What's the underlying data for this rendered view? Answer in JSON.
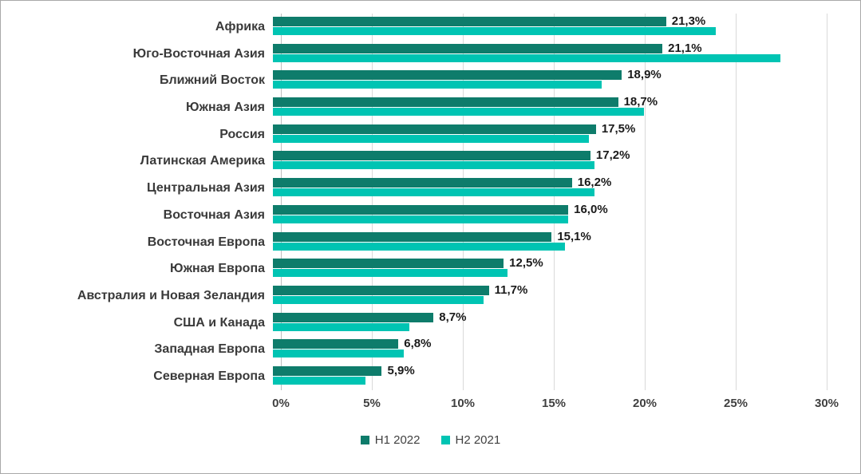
{
  "chart_data": {
    "type": "bar",
    "orientation": "horizontal",
    "title": "",
    "xlabel": "",
    "ylabel": "",
    "xlim": [
      0,
      30
    ],
    "x_ticks": [
      "0%",
      "5%",
      "10%",
      "15%",
      "20%",
      "25%",
      "30%"
    ],
    "grid": true,
    "legend_position": "bottom",
    "categories": [
      "Африка",
      "Юго-Восточная Азия",
      "Ближний Восток",
      "Южная Азия",
      "Россия",
      "Латинская Америка",
      "Центральная Азия",
      "Восточная Азия",
      "Восточная Европа",
      "Южная Европа",
      "Австралия и Новая Зеландия",
      "США и Канада",
      "Западная Европа",
      "Северная Европа"
    ],
    "series": [
      {
        "name": "H1 2022",
        "color": "#0E7C6B",
        "values": [
          21.3,
          21.1,
          18.9,
          18.7,
          17.5,
          17.2,
          16.2,
          16.0,
          15.1,
          12.5,
          11.7,
          8.7,
          6.8,
          5.9
        ],
        "data_labels": [
          "21,3%",
          "21,1%",
          "18,9%",
          "18,7%",
          "17,5%",
          "17,2%",
          "16,2%",
          "16,0%",
          "15,1%",
          "12,5%",
          "11,7%",
          "8,7%",
          "6,8%",
          "5,9%"
        ]
      },
      {
        "name": "H2 2021",
        "color": "#00C4B3",
        "values": [
          24.0,
          27.5,
          17.8,
          20.1,
          17.1,
          17.4,
          17.4,
          16.0,
          15.8,
          12.7,
          11.4,
          7.4,
          7.1,
          5.0
        ]
      }
    ]
  }
}
